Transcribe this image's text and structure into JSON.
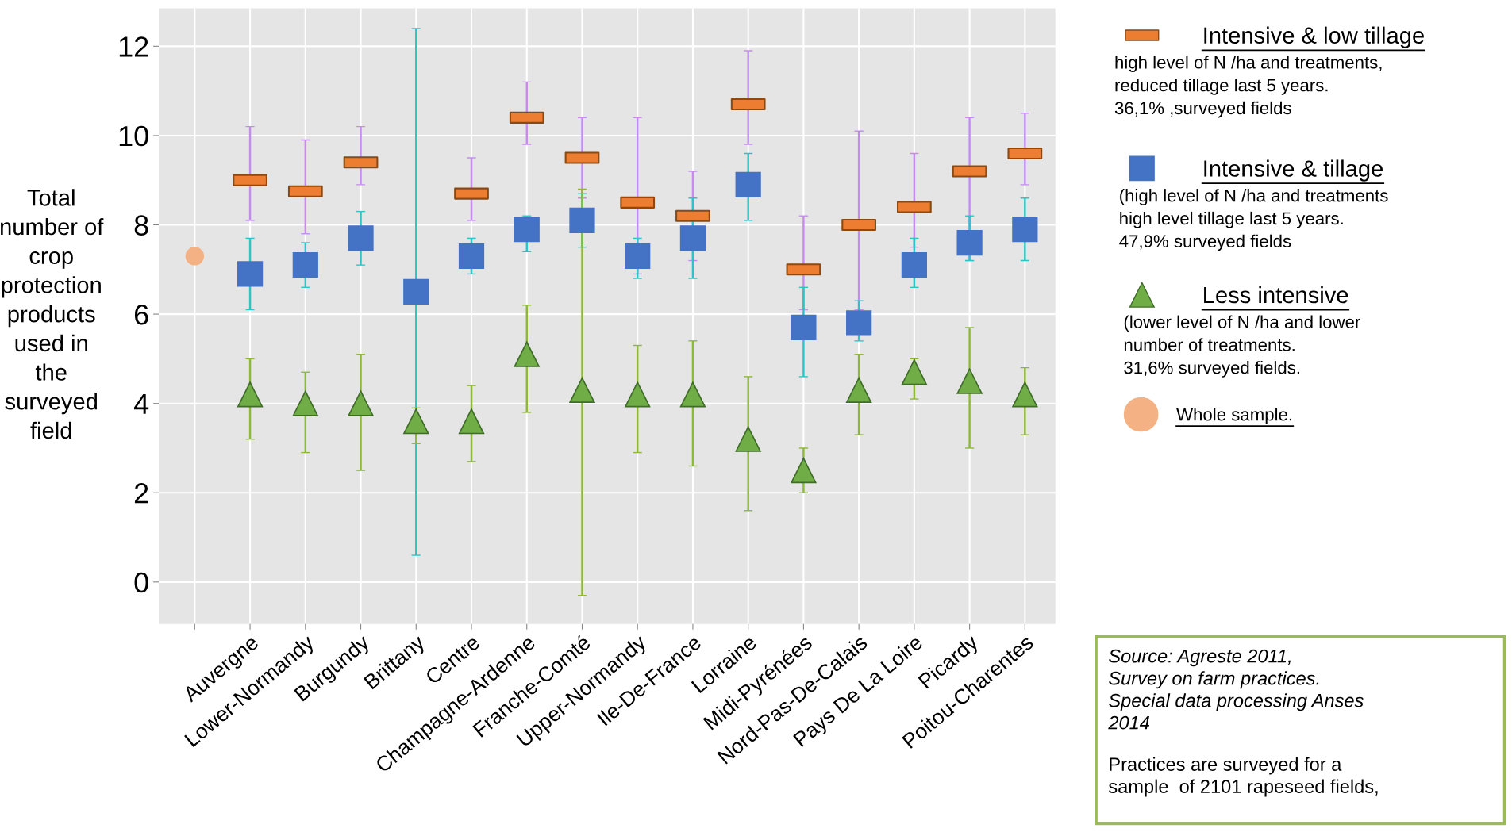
{
  "chart_data": {
    "type": "scatter",
    "ylabel": "Total\nnumber of\ncrop\nprotection\nproducts\nused in\nthe\nsurveyed\nfield",
    "categories": [
      null,
      "Auvergne",
      "Lower-Normandy",
      "Burgundy",
      "Brittany",
      "Centre",
      "Champagne-Ardenne",
      "Franche-Comté",
      "Upper-Normandy",
      "Ile-De-France",
      "Lorraine",
      "Midi-Pyrénées",
      "Nord-Pas-De-Calais",
      "Pays De La Loire",
      "Picardy",
      "Poitou-Charentes"
    ],
    "series": [
      {
        "name": "Intensive & low tillage",
        "color": "#ed7d31",
        "marker": "square",
        "values": [
          null,
          9.0,
          8.75,
          9.4,
          null,
          8.7,
          10.4,
          9.5,
          8.5,
          8.2,
          10.7,
          7.0,
          8.0,
          8.4,
          9.2,
          9.6
        ],
        "errors": [
          null,
          [
            8.1,
            10.2
          ],
          [
            7.8,
            9.9
          ],
          [
            8.9,
            10.2
          ],
          null,
          [
            8.1,
            9.5
          ],
          [
            9.8,
            11.2
          ],
          [
            8.6,
            10.4
          ],
          [
            6.9,
            10.4
          ],
          [
            7.2,
            9.2
          ],
          [
            9.8,
            11.9
          ],
          [
            6.1,
            8.2
          ],
          [
            6.1,
            10.1
          ],
          [
            7.5,
            9.6
          ],
          [
            7.2,
            10.4
          ],
          [
            8.9,
            10.5
          ]
        ]
      },
      {
        "name": "Intensive & tillage",
        "color": "#4472c4",
        "marker": "square",
        "values": [
          null,
          6.9,
          7.1,
          7.7,
          6.5,
          7.3,
          7.9,
          8.1,
          7.3,
          7.7,
          8.9,
          5.7,
          5.8,
          7.1,
          7.6,
          7.9
        ],
        "errors": [
          null,
          [
            6.1,
            7.7
          ],
          [
            6.6,
            7.6
          ],
          [
            7.1,
            8.3
          ],
          [
            0.6,
            12.4
          ],
          [
            6.9,
            7.7
          ],
          [
            7.4,
            8.2
          ],
          [
            7.5,
            8.7
          ],
          [
            6.8,
            7.7
          ],
          [
            6.8,
            8.6
          ],
          [
            8.1,
            9.6
          ],
          [
            4.6,
            6.6
          ],
          [
            5.4,
            6.3
          ],
          [
            6.6,
            7.7
          ],
          [
            7.2,
            8.2
          ],
          [
            7.2,
            8.6
          ]
        ]
      },
      {
        "name": "Less intensive",
        "color": "#70ad47",
        "marker": "triangle",
        "values": [
          null,
          4.2,
          4.0,
          4.0,
          3.6,
          3.6,
          5.1,
          4.3,
          4.2,
          4.2,
          3.2,
          2.5,
          4.3,
          4.7,
          4.5,
          4.2
        ],
        "errors": [
          null,
          [
            3.2,
            5.0
          ],
          [
            2.9,
            4.7
          ],
          [
            2.5,
            5.1
          ],
          [
            3.1,
            3.9
          ],
          [
            2.7,
            4.4
          ],
          [
            3.8,
            6.2
          ],
          [
            -0.3,
            8.8
          ],
          [
            2.9,
            5.3
          ],
          [
            2.6,
            5.4
          ],
          [
            1.6,
            4.6
          ],
          [
            2.0,
            3.0
          ],
          [
            3.3,
            5.1
          ],
          [
            4.1,
            5.0
          ],
          [
            3.0,
            5.7
          ],
          [
            3.3,
            4.8
          ]
        ]
      },
      {
        "name": "Whole sample.",
        "color": "#f4b183",
        "marker": "circle",
        "values": [
          7.3,
          null,
          null,
          null,
          null,
          null,
          null,
          null,
          null,
          null,
          null,
          null,
          null,
          null,
          null,
          null
        ]
      }
    ],
    "ylim": [
      -0.94,
      12.85
    ],
    "yticks": [
      0,
      2,
      4,
      6,
      8,
      10,
      12
    ],
    "grid": true,
    "legend": "right",
    "annotations": [
      "high level of N /ha and treatments,\nreduced tillage last 5 years.\n36,1% ,surveyed fields",
      "(high level of N /ha and treatments\nhigh level tillage last 5 years.\n47,9% surveyed fields",
      "(lower level of N /ha and lower\nnumber of treatments.\n31,6% surveyed fields.",
      "Source: Agreste 2011,\nSurvey on farm practices.\nSpecial data processing Anses\n2014",
      "Practices are surveyed for a\nsample  of 2101 rapeseed fields,"
    ]
  }
}
